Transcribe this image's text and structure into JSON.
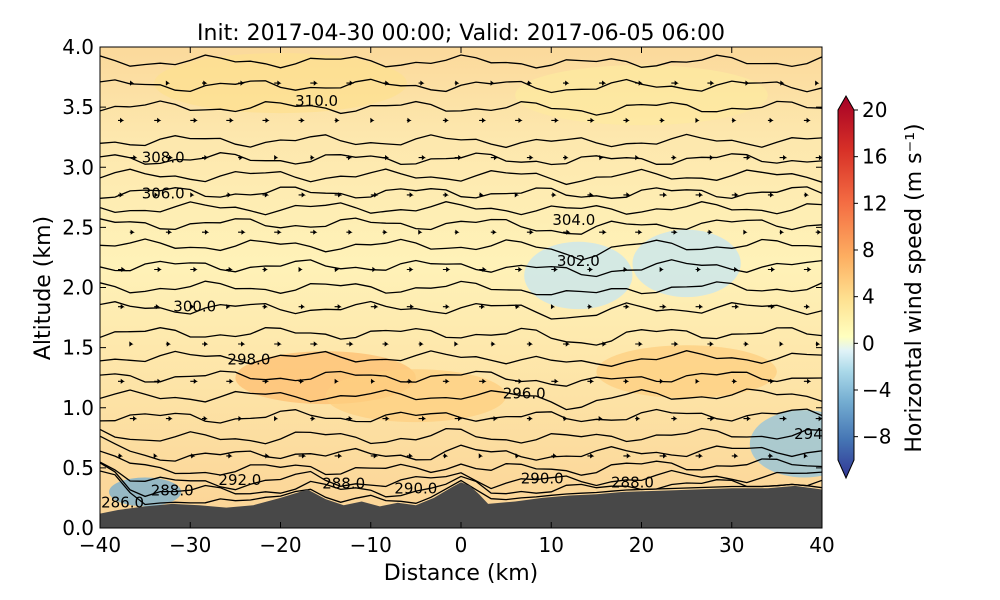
{
  "chart_data": {
    "type": "heatmap",
    "title": "Init: 2017-04-30 00:00; Valid: 2017-06-05 06:00",
    "xlabel": "Distance (km)",
    "ylabel": "Altitude (km)",
    "xlim": [
      -40,
      40
    ],
    "ylim": [
      0.0,
      4.0
    ],
    "xticks": [
      "−40",
      "−30",
      "−20",
      "−10",
      "0",
      "10",
      "20",
      "30",
      "40"
    ],
    "xtick_values": [
      -40,
      -30,
      -20,
      -10,
      0,
      10,
      20,
      30,
      40
    ],
    "yticks": [
      "0.0",
      "0.5",
      "1.0",
      "1.5",
      "2.0",
      "2.5",
      "3.0",
      "3.5",
      "4.0"
    ],
    "ytick_values": [
      0.0,
      0.5,
      1.0,
      1.5,
      2.0,
      2.5,
      3.0,
      3.5,
      4.0
    ],
    "colorbar": {
      "label": "Horizontal wind speed (m s⁻¹)",
      "range": [
        -10,
        20
      ],
      "ticks": [
        "−8",
        "−4",
        "0",
        "4",
        "8",
        "12",
        "16",
        "20"
      ],
      "tick_values": [
        -8,
        -4,
        0,
        4,
        8,
        12,
        16,
        20
      ]
    },
    "contour_labels": [
      {
        "text": "310.0",
        "x": -16.0,
        "y": 3.55
      },
      {
        "text": "308.0",
        "x": -33.0,
        "y": 3.08
      },
      {
        "text": "306.0",
        "x": -33.0,
        "y": 2.78
      },
      {
        "text": "304.0",
        "x": 12.5,
        "y": 2.56
      },
      {
        "text": "302.0",
        "x": 13.0,
        "y": 2.22
      },
      {
        "text": "300.0",
        "x": -29.5,
        "y": 1.84
      },
      {
        "text": "298.0",
        "x": -23.5,
        "y": 1.4
      },
      {
        "text": "296.0",
        "x": 7.0,
        "y": 1.12
      },
      {
        "text": "294",
        "x": 38.5,
        "y": 0.78
      },
      {
        "text": "292.0",
        "x": -24.5,
        "y": 0.4
      },
      {
        "text": "290.0",
        "x": 9.0,
        "y": 0.41
      },
      {
        "text": "290.0",
        "x": -5.0,
        "y": 0.33
      },
      {
        "text": "288.0",
        "x": -32.0,
        "y": 0.31
      },
      {
        "text": "288.0",
        "x": -13.0,
        "y": 0.37
      },
      {
        "text": "288.0",
        "x": 19.0,
        "y": 0.38
      },
      {
        "text": "286.0",
        "x": -37.5,
        "y": 0.21
      }
    ],
    "isentropes": [
      {
        "level": 286,
        "y": 0.24
      },
      {
        "level": 288,
        "y": 0.33
      },
      {
        "level": 290,
        "y": 0.4
      },
      {
        "level": 292,
        "y": 0.5
      },
      {
        "level": 293,
        "y": 0.62
      },
      {
        "level": 294,
        "y": 0.76
      },
      {
        "level": 295,
        "y": 0.93
      },
      {
        "level": 296,
        "y": 1.1
      },
      {
        "level": 297,
        "y": 1.26
      },
      {
        "level": 298,
        "y": 1.42
      },
      {
        "level": 299,
        "y": 1.62
      },
      {
        "level": 300,
        "y": 1.83
      },
      {
        "level": 301,
        "y": 2.0
      },
      {
        "level": 302,
        "y": 2.18
      },
      {
        "level": 303,
        "y": 2.35
      },
      {
        "level": 304,
        "y": 2.53
      },
      {
        "level": 305,
        "y": 2.66
      },
      {
        "level": 306,
        "y": 2.79
      },
      {
        "level": 307,
        "y": 2.93
      },
      {
        "level": 308,
        "y": 3.07
      },
      {
        "level": 309,
        "y": 3.22
      },
      {
        "level": 310,
        "y": 3.5
      },
      {
        "level": 311,
        "y": 3.68
      },
      {
        "level": 312,
        "y": 3.88
      }
    ],
    "terrain": [
      {
        "x": -40,
        "y": 0.12
      },
      {
        "x": -38,
        "y": 0.15
      },
      {
        "x": -35,
        "y": 0.18
      },
      {
        "x": -32,
        "y": 0.2
      },
      {
        "x": -29,
        "y": 0.19
      },
      {
        "x": -26,
        "y": 0.17
      },
      {
        "x": -23,
        "y": 0.19
      },
      {
        "x": -20,
        "y": 0.25
      },
      {
        "x": -17,
        "y": 0.32
      },
      {
        "x": -15,
        "y": 0.24
      },
      {
        "x": -13,
        "y": 0.19
      },
      {
        "x": -11,
        "y": 0.22
      },
      {
        "x": -9,
        "y": 0.18
      },
      {
        "x": -7,
        "y": 0.21
      },
      {
        "x": -5,
        "y": 0.19
      },
      {
        "x": -3,
        "y": 0.25
      },
      {
        "x": -1,
        "y": 0.34
      },
      {
        "x": 0,
        "y": 0.38
      },
      {
        "x": 1,
        "y": 0.35
      },
      {
        "x": 2,
        "y": 0.28
      },
      {
        "x": 3,
        "y": 0.2
      },
      {
        "x": 6,
        "y": 0.22
      },
      {
        "x": 9,
        "y": 0.25
      },
      {
        "x": 12,
        "y": 0.27
      },
      {
        "x": 15,
        "y": 0.28
      },
      {
        "x": 18,
        "y": 0.3
      },
      {
        "x": 22,
        "y": 0.31
      },
      {
        "x": 26,
        "y": 0.32
      },
      {
        "x": 30,
        "y": 0.33
      },
      {
        "x": 34,
        "y": 0.33
      },
      {
        "x": 37,
        "y": 0.35
      },
      {
        "x": 40,
        "y": 0.32
      }
    ],
    "wind_regions": [
      {
        "name": "weak-reversed-flow",
        "x": 13,
        "y": 2.1,
        "value": -1
      },
      {
        "name": "weak-reversed-flow",
        "x": 25,
        "y": 2.2,
        "value": -1
      },
      {
        "name": "weak-reversed-flow",
        "x": 38,
        "y": 0.7,
        "value": -3
      },
      {
        "name": "low-level-jet",
        "x": -15,
        "y": 1.25,
        "value": 6
      },
      {
        "name": "low-level-jet",
        "x": -5,
        "y": 1.1,
        "value": 5
      },
      {
        "name": "low-level-jet",
        "x": 25,
        "y": 1.3,
        "value": 5
      },
      {
        "name": "upper-level-flow",
        "x": -20,
        "y": 3.7,
        "value": 4
      },
      {
        "name": "upper-level-flow",
        "x": 20,
        "y": 3.6,
        "value": 3
      },
      {
        "name": "near-ground-reversal",
        "x": -35,
        "y": 0.3,
        "value": -4
      }
    ]
  }
}
